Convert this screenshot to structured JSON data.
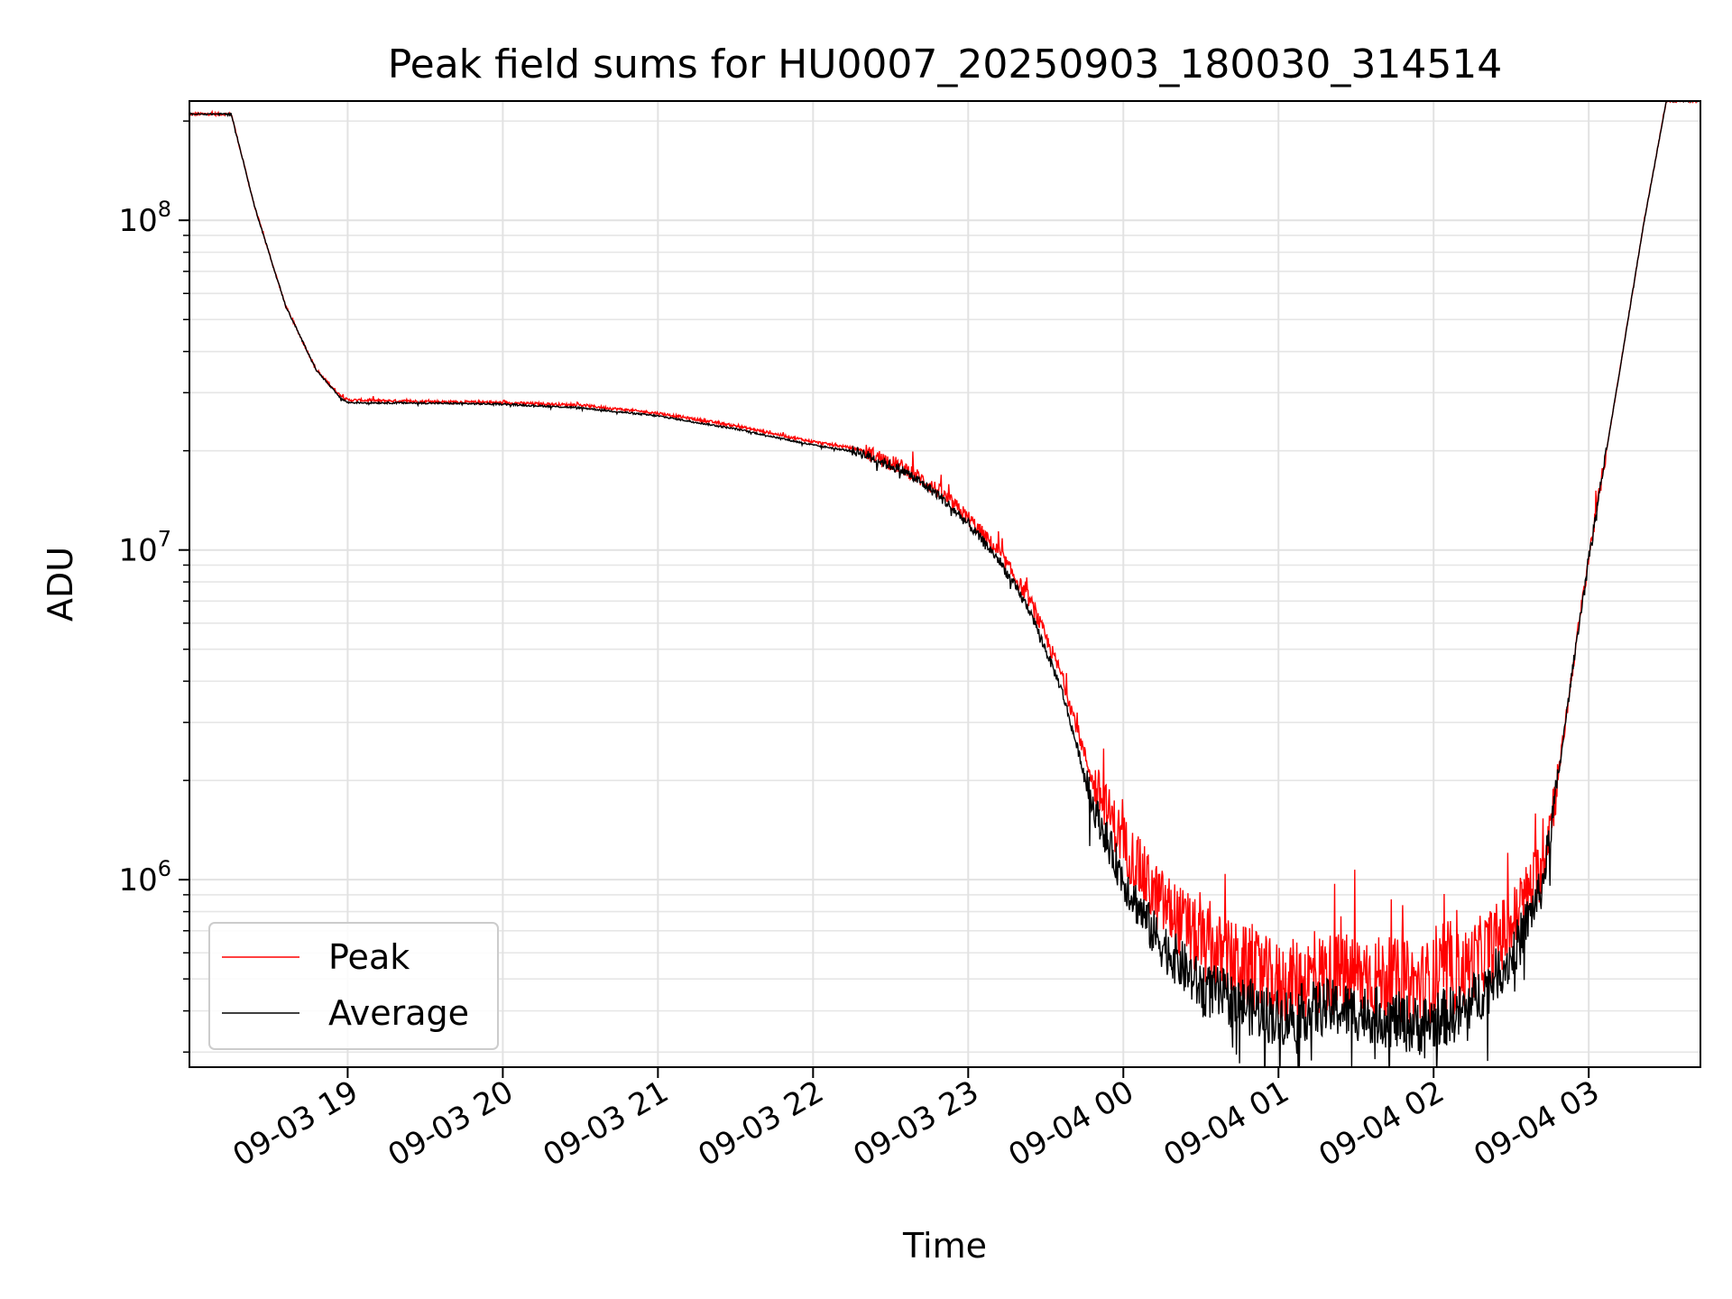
{
  "chart_data": {
    "type": "line",
    "title": "Peak field sums for HU0007_20250903_180030_314514",
    "xlabel": "Time",
    "ylabel": "ADU",
    "yscale": "log",
    "ylim": [
      270000,
      230000000
    ],
    "xlim_hours": [
      -0.02,
      9.72
    ],
    "x_unit": "hours since 09-03 18:00",
    "grid": true,
    "x_ticks": [
      {
        "label": "09-03 19",
        "hour": 1
      },
      {
        "label": "09-03 20",
        "hour": 2
      },
      {
        "label": "09-03 21",
        "hour": 3
      },
      {
        "label": "09-03 22",
        "hour": 4
      },
      {
        "label": "09-03 23",
        "hour": 5
      },
      {
        "label": "09-04 00",
        "hour": 6
      },
      {
        "label": "09-04 01",
        "hour": 7
      },
      {
        "label": "09-04 02",
        "hour": 8
      },
      {
        "label": "09-04 03",
        "hour": 9
      }
    ],
    "y_ticks": [
      {
        "base": "10",
        "exp": "6",
        "value": 1000000
      },
      {
        "base": "10",
        "exp": "7",
        "value": 10000000
      },
      {
        "base": "10",
        "exp": "8",
        "value": 100000000
      }
    ],
    "legend": {
      "position": "lower-left",
      "entries": [
        "Peak",
        "Average"
      ]
    },
    "series": [
      {
        "name": "Peak",
        "color": "#ff0000",
        "noise": 0.14,
        "x": [
          0.0,
          0.25,
          0.4,
          0.6,
          0.8,
          0.95,
          1.0,
          1.5,
          2.0,
          2.5,
          3.0,
          3.5,
          4.0,
          4.3,
          4.6,
          4.8,
          5.0,
          5.2,
          5.4,
          5.6,
          5.8,
          6.0,
          6.2,
          6.5,
          7.0,
          7.3,
          7.6,
          7.9,
          8.2,
          8.5,
          8.7,
          8.8,
          8.9,
          9.0,
          9.2,
          9.35,
          9.5,
          9.72
        ],
        "y": [
          210000000,
          210000000,
          110000000,
          55000000,
          35000000,
          29500000,
          28500000,
          28200000,
          28000000,
          27500000,
          26000000,
          23800000,
          21300000,
          20200000,
          17600000,
          15200000,
          12500000,
          9800000,
          7000000,
          4200000,
          2000000,
          1300000,
          900000,
          640000,
          480000,
          520000,
          510000,
          480000,
          530000,
          720000,
          1100000,
          2000000,
          4500000,
          9500000,
          35000000,
          95000000,
          230000000,
          230000000
        ]
      },
      {
        "name": "Average",
        "color": "#000000",
        "noise": 0.09,
        "x": [
          0.0,
          0.25,
          0.4,
          0.6,
          0.8,
          0.95,
          1.0,
          1.5,
          2.0,
          2.5,
          3.0,
          3.5,
          4.0,
          4.3,
          4.6,
          4.8,
          5.0,
          5.2,
          5.4,
          5.6,
          5.8,
          6.0,
          6.2,
          6.5,
          7.0,
          7.3,
          7.6,
          7.9,
          8.2,
          8.5,
          8.7,
          8.8,
          8.9,
          9.0,
          9.2,
          9.35,
          9.5,
          9.72
        ],
        "y": [
          210000000,
          210000000,
          110000000,
          55000000,
          35000000,
          29000000,
          28000000,
          27900000,
          27700000,
          27000000,
          25500000,
          23300000,
          20800000,
          19800000,
          17200000,
          14800000,
          12000000,
          9300000,
          6500000,
          3800000,
          1700000,
          1000000,
          680000,
          470000,
          380000,
          410000,
          390000,
          360000,
          400000,
          580000,
          950000,
          2000000,
          4500000,
          9500000,
          35000000,
          95000000,
          230000000,
          230000000
        ]
      }
    ]
  }
}
